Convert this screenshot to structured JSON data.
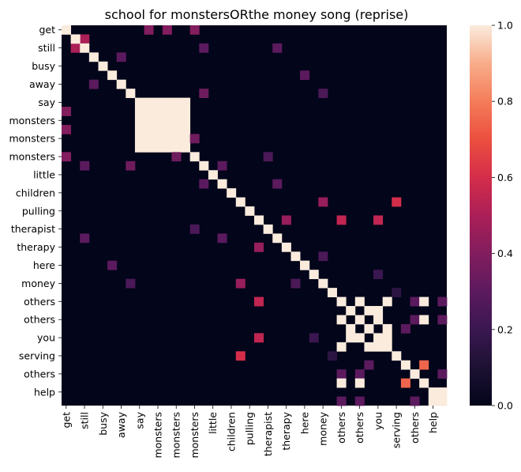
{
  "chart_data": {
    "type": "heatmap",
    "title": "school for monstersORthe money song (reprise)",
    "labels": [
      "get",
      "get",
      "still",
      "still",
      "busy",
      "busy",
      "away",
      "away",
      "say",
      "say",
      "monsters",
      "monsters",
      "monsters",
      "monsters",
      "monsters",
      "monsters",
      "little",
      "little",
      "children",
      "children",
      "pulling",
      "pulling",
      "therapist",
      "therapist",
      "therapy",
      "therapy",
      "here",
      "here",
      "money",
      "money",
      "others",
      "others",
      "others",
      "others",
      "you",
      "you",
      "serving",
      "serving",
      "others",
      "others",
      "help",
      "help"
    ],
    "tick_every": 2,
    "colorbar": {
      "min": 0.0,
      "max": 1.0,
      "ticks": [
        "0.0",
        "0.2",
        "0.4",
        "0.6",
        "0.8",
        "1.0"
      ]
    },
    "diagonal": 1.0,
    "cells": [
      [
        0,
        9,
        0.4
      ],
      [
        9,
        0,
        0.4
      ],
      [
        0,
        14,
        0.4
      ],
      [
        14,
        0,
        0.4
      ],
      [
        0,
        11,
        0.4
      ],
      [
        11,
        0,
        0.4
      ],
      [
        1,
        2,
        0.5
      ],
      [
        2,
        1,
        0.5
      ],
      [
        2,
        15,
        0.3
      ],
      [
        15,
        2,
        0.3
      ],
      [
        2,
        23,
        0.3
      ],
      [
        23,
        2,
        0.3
      ],
      [
        5,
        26,
        0.3
      ],
      [
        26,
        5,
        0.3
      ],
      [
        3,
        6,
        0.3
      ],
      [
        6,
        3,
        0.3
      ],
      [
        8,
        9,
        1.0
      ],
      [
        8,
        10,
        1.0
      ],
      [
        8,
        12,
        1.0
      ],
      [
        8,
        13,
        1.0
      ],
      [
        9,
        12,
        1.0
      ],
      [
        9,
        13,
        1.0
      ],
      [
        10,
        12,
        1.0
      ],
      [
        10,
        13,
        1.0
      ],
      [
        11,
        12,
        1.0
      ],
      [
        11,
        13,
        1.0
      ],
      [
        9,
        10,
        1.0
      ],
      [
        9,
        11,
        1.0
      ],
      [
        10,
        11,
        1.0
      ],
      [
        12,
        13,
        1.0
      ],
      [
        9,
        8,
        1.0
      ],
      [
        10,
        8,
        1.0
      ],
      [
        12,
        8,
        1.0
      ],
      [
        13,
        8,
        1.0
      ],
      [
        12,
        9,
        1.0
      ],
      [
        13,
        9,
        1.0
      ],
      [
        12,
        10,
        1.0
      ],
      [
        13,
        10,
        1.0
      ],
      [
        12,
        11,
        1.0
      ],
      [
        13,
        11,
        1.0
      ],
      [
        10,
        9,
        1.0
      ],
      [
        11,
        9,
        1.0
      ],
      [
        11,
        10,
        1.0
      ],
      [
        13,
        12,
        1.0
      ],
      [
        8,
        11,
        1.0
      ],
      [
        11,
        8,
        1.0
      ],
      [
        7,
        15,
        0.35
      ],
      [
        15,
        7,
        0.35
      ],
      [
        7,
        28,
        0.25
      ],
      [
        28,
        7,
        0.25
      ],
      [
        12,
        14,
        0.35
      ],
      [
        14,
        12,
        0.35
      ],
      [
        17,
        15,
        0.3
      ],
      [
        15,
        17,
        0.3
      ],
      [
        17,
        23,
        0.3
      ],
      [
        23,
        17,
        0.3
      ],
      [
        19,
        28,
        0.45
      ],
      [
        28,
        19,
        0.45
      ],
      [
        19,
        36,
        0.6
      ],
      [
        36,
        19,
        0.6
      ],
      [
        19,
        42,
        0.35
      ],
      [
        21,
        24,
        0.45
      ],
      [
        24,
        21,
        0.45
      ],
      [
        21,
        34,
        0.55
      ],
      [
        34,
        21,
        0.55
      ],
      [
        21,
        30,
        0.55
      ],
      [
        30,
        21,
        0.55
      ],
      [
        22,
        14,
        0.25
      ],
      [
        14,
        22,
        0.25
      ],
      [
        26,
        26,
        1.0
      ],
      [
        25,
        28,
        0.25
      ],
      [
        28,
        25,
        0.25
      ],
      [
        27,
        34,
        0.2
      ],
      [
        34,
        27,
        0.2
      ],
      [
        29,
        36,
        0.15
      ],
      [
        36,
        29,
        0.15
      ],
      [
        30,
        32,
        1.0
      ],
      [
        32,
        30,
        1.0
      ],
      [
        31,
        33,
        1.0
      ],
      [
        33,
        31,
        1.0
      ],
      [
        30,
        35,
        1.0
      ],
      [
        35,
        30,
        1.0
      ],
      [
        31,
        34,
        1.0
      ],
      [
        34,
        31,
        1.0
      ],
      [
        32,
        34,
        1.0
      ],
      [
        34,
        32,
        1.0
      ],
      [
        33,
        35,
        1.0
      ],
      [
        35,
        33,
        1.0
      ],
      [
        30,
        38,
        0.3
      ],
      [
        38,
        30,
        0.3
      ],
      [
        32,
        38,
        0.3
      ],
      [
        38,
        32,
        0.3
      ],
      [
        30,
        39,
        1.0
      ],
      [
        39,
        30,
        1.0
      ],
      [
        32,
        39,
        1.0
      ],
      [
        39,
        32,
        1.0
      ],
      [
        30,
        41,
        0.3
      ],
      [
        41,
        30,
        0.3
      ],
      [
        32,
        41,
        0.3
      ],
      [
        41,
        32,
        0.3
      ],
      [
        33,
        37,
        0.3
      ],
      [
        37,
        33,
        0.3
      ],
      [
        34,
        35,
        1.0
      ],
      [
        35,
        34,
        1.0
      ],
      [
        36,
        42,
        0.3
      ],
      [
        42,
        36,
        0.3
      ],
      [
        37,
        39,
        0.75
      ],
      [
        39,
        37,
        0.75
      ],
      [
        38,
        41,
        0.3
      ],
      [
        41,
        38,
        0.3
      ],
      [
        40,
        41,
        1.0
      ],
      [
        41,
        40,
        1.0
      ]
    ]
  }
}
